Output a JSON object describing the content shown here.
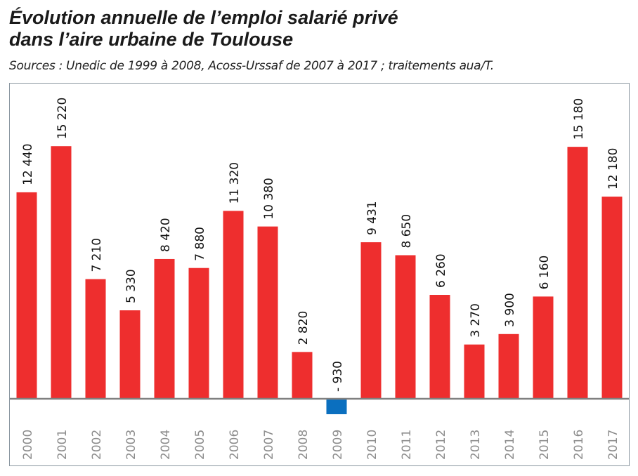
{
  "chart_data": {
    "type": "bar",
    "title": "Évolution annuelle de l’emploi salarié privé dans l’aire urbaine de Toulouse",
    "title_lines": [
      "Évolution annuelle de l’emploi salarié privé",
      "dans l’aire urbaine de Toulouse"
    ],
    "subtitle": "Sources : Unedic de 1999 à 2008, Acoss-Urssaf de 2007 à 2017 ; traitements aua/T.",
    "xlabel": "",
    "ylabel": "",
    "categories": [
      "2000",
      "2001",
      "2002",
      "2003",
      "2004",
      "2005",
      "2006",
      "2007",
      "2008",
      "2009",
      "2010",
      "2011",
      "2012",
      "2013",
      "2014",
      "2015",
      "2016",
      "2017"
    ],
    "values": [
      12440,
      15220,
      7210,
      5330,
      8420,
      7880,
      11320,
      10380,
      2820,
      -930,
      9431,
      8650,
      6260,
      3270,
      3900,
      6160,
      15180,
      12180
    ],
    "data_labels": [
      "12 440",
      "15 220",
      "7 210",
      "5 330",
      "8 420",
      "7 880",
      "11 320",
      "10 380",
      "2 820",
      "- 930",
      "9 431",
      "8 650",
      "6 260",
      "3 270",
      "3 900",
      "6 160",
      "15 180",
      "12 180"
    ],
    "ylim": [
      -930,
      15220
    ],
    "grid": false,
    "colors": {
      "positive": "#ee2e2e",
      "negative": "#0a6fbf",
      "axis": "#808080",
      "frame": "#8a96a0",
      "year_label": "#8c8c8c"
    }
  }
}
